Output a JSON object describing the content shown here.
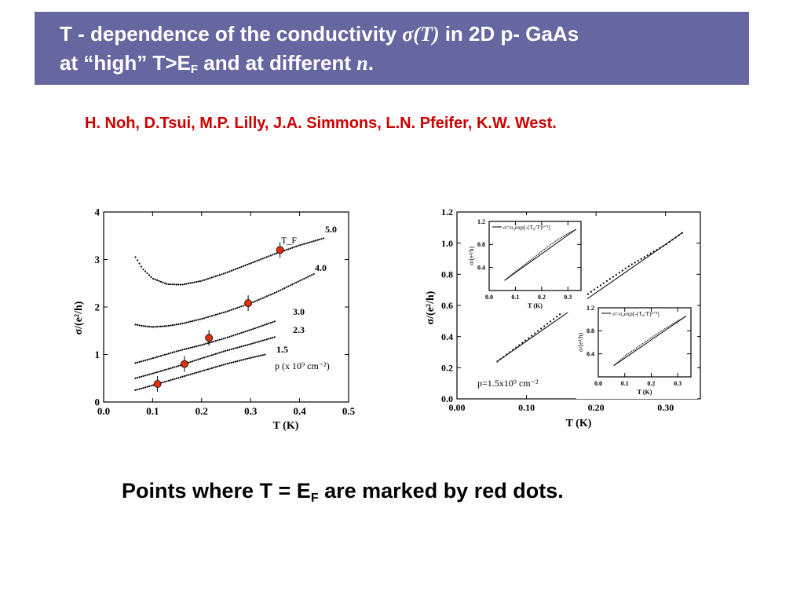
{
  "slide": {
    "title_line1_part1": "T - dependence of the conductivity ",
    "title_sigma": "σ",
    "title_T": "(T)",
    "title_line1_part2": " in 2D p- GaAs",
    "title_line2_part1": "at “high”  T>E",
    "title_line2_sub": "F",
    "title_line2_part2": "  and at different ",
    "title_line2_n": "n",
    "title_line2_end": ".",
    "authors": "H. Noh, D.Tsui, M.P. Lilly, J.A. Simmons, L.N. Pfeifer, K.W. West.",
    "bottom_part1": "Points where T = E",
    "bottom_sub": "F",
    "bottom_part2": "  are marked by red dots.",
    "marker_color": "#e03010",
    "title_bg": "#6666a0",
    "authors_color": "#cc0000"
  },
  "chart_data": [
    {
      "type": "scatter",
      "xlabel": "T (K)",
      "ylabel": "σ/(e²/h)",
      "xlim": [
        0,
        0.5
      ],
      "ylim": [
        0,
        4
      ],
      "xticks": [
        "0.0",
        "0.1",
        "0.2",
        "0.3",
        "0.4",
        "0.5"
      ],
      "yticks": [
        "0",
        "1",
        "2",
        "3",
        "4"
      ],
      "legend_title": "p (x 10⁹ cm⁻²)",
      "marker_label": "T_F",
      "series": [
        {
          "name": "5.0",
          "x": [
            0.065,
            0.08,
            0.1,
            0.13,
            0.16,
            0.2,
            0.25,
            0.3,
            0.35,
            0.4,
            0.45
          ],
          "values": [
            3.05,
            2.8,
            2.6,
            2.48,
            2.47,
            2.55,
            2.72,
            2.92,
            3.12,
            3.3,
            3.45
          ]
        },
        {
          "name": "4.0",
          "x": [
            0.065,
            0.08,
            0.1,
            0.13,
            0.16,
            0.2,
            0.25,
            0.3,
            0.35,
            0.4,
            0.43
          ],
          "values": [
            1.63,
            1.6,
            1.58,
            1.6,
            1.65,
            1.75,
            1.9,
            2.08,
            2.3,
            2.55,
            2.7
          ]
        },
        {
          "name": "3.0",
          "x": [
            0.065,
            0.1,
            0.15,
            0.2,
            0.25,
            0.3,
            0.35
          ],
          "values": [
            0.82,
            0.92,
            1.07,
            1.2,
            1.35,
            1.52,
            1.7
          ]
        },
        {
          "name": "2.3",
          "x": [
            0.065,
            0.1,
            0.15,
            0.2,
            0.25,
            0.3,
            0.35
          ],
          "values": [
            0.5,
            0.6,
            0.75,
            0.92,
            1.08,
            1.22,
            1.37
          ]
        },
        {
          "name": "1.5",
          "x": [
            0.065,
            0.1,
            0.15,
            0.2,
            0.25,
            0.3,
            0.33
          ],
          "values": [
            0.25,
            0.35,
            0.5,
            0.65,
            0.8,
            0.93,
            1.0
          ]
        }
      ],
      "tf_points": {
        "x": [
          0.36,
          0.295,
          0.215,
          0.165,
          0.11
        ],
        "values": [
          3.2,
          2.08,
          1.35,
          0.8,
          0.38
        ]
      }
    },
    {
      "type": "scatter",
      "xlabel": "T (K)",
      "ylabel": "σ/(e²/h)",
      "xlim": [
        0,
        0.35
      ],
      "ylim": [
        0,
        1.2
      ],
      "xticks": [
        "0.00",
        "0.10",
        "0.20",
        "0.30"
      ],
      "yticks": [
        "0.0",
        "0.2",
        "0.4",
        "0.6",
        "0.8",
        "1.0",
        "1.2"
      ],
      "annotation": "p=1.5x10⁹ cm⁻²",
      "series": [
        {
          "name": "",
          "x": [
            0.058,
            0.1,
            0.15,
            0.2,
            0.25,
            0.3,
            0.325
          ],
          "values": [
            0.24,
            0.38,
            0.55,
            0.71,
            0.86,
            0.99,
            1.07
          ]
        }
      ],
      "insets": [
        {
          "legend": "σ=σ₀exp[-(T₀/T)¹ᐟ³]",
          "xlabel": "T (K)",
          "ylabel": "σ/(e²/h)",
          "xticks": [
            "0.0",
            "0.1",
            "0.2",
            "0.3"
          ],
          "yticks": [
            "0.4",
            "0.8",
            "1.2"
          ],
          "xlim": [
            0,
            0.35
          ],
          "ylim": [
            0,
            1.2
          ],
          "x": [
            0.06,
            0.1,
            0.15,
            0.2,
            0.25,
            0.3,
            0.33
          ],
          "values": [
            0.18,
            0.33,
            0.5,
            0.68,
            0.85,
            0.99,
            1.06
          ]
        },
        {
          "legend": "σ=σ₀exp[-(T₀/T)¹ᐟ²]",
          "xlabel": "T (K)",
          "ylabel": "σ/(e²/h)",
          "xticks": [
            "0.0",
            "0.1",
            "0.2",
            "0.3"
          ],
          "yticks": [
            "0.4",
            "0.8",
            "1.2"
          ],
          "xlim": [
            0,
            0.35
          ],
          "ylim": [
            0,
            1.2
          ],
          "x": [
            0.06,
            0.1,
            0.15,
            0.2,
            0.25,
            0.3,
            0.33
          ],
          "values": [
            0.2,
            0.36,
            0.52,
            0.68,
            0.83,
            0.97,
            1.05
          ]
        }
      ]
    }
  ]
}
